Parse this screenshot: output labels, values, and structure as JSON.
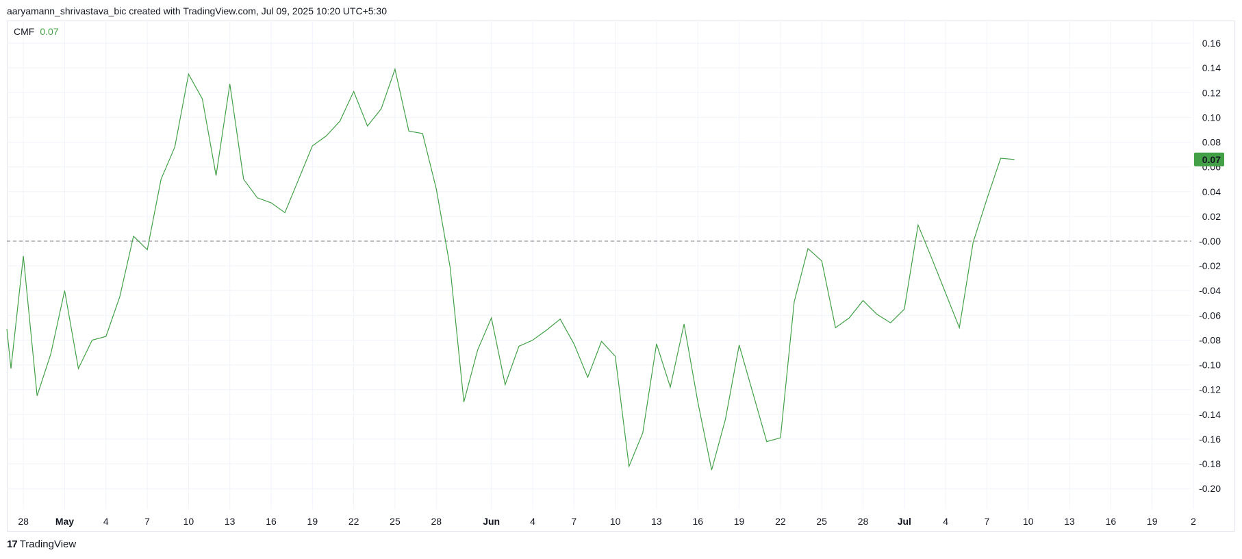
{
  "header": {
    "attribution": "aaryamann_shrivastava_bic created with TradingView.com, Jul 09, 2025 10:20 UTC+5:30"
  },
  "legend": {
    "indicator": "CMF",
    "value": "0.07"
  },
  "price_label": {
    "value": "0.07"
  },
  "footer": {
    "brand": "TradingView",
    "logo_glyph": "17"
  },
  "colors": {
    "series": "#43a047",
    "label_bg": "#43a047",
    "grid": "#f0f3fa",
    "zero_line": "#787b86"
  },
  "chart_data": {
    "type": "line",
    "title": "",
    "ylim": [
      -0.22,
      0.17
    ],
    "grid": true,
    "y_ticks": [
      "0.16",
      "0.14",
      "0.12",
      "0.10",
      "0.08",
      "0.06",
      "0.04",
      "0.02",
      "-0.00",
      "-0.02",
      "-0.04",
      "-0.06",
      "-0.08",
      "-0.10",
      "-0.12",
      "-0.14",
      "-0.16",
      "-0.18",
      "-0.20"
    ],
    "y_tick_values": [
      0.16,
      0.14,
      0.12,
      0.1,
      0.08,
      0.06,
      0.04,
      0.02,
      0,
      -0.02,
      -0.04,
      -0.06,
      -0.08,
      -0.1,
      -0.12,
      -0.14,
      -0.16,
      -0.18,
      -0.2
    ],
    "x_ticks": [
      {
        "label": "28",
        "day": -3
      },
      {
        "label": "May",
        "day": 0,
        "bold": true
      },
      {
        "label": "4",
        "day": 3
      },
      {
        "label": "7",
        "day": 6
      },
      {
        "label": "10",
        "day": 9
      },
      {
        "label": "13",
        "day": 12
      },
      {
        "label": "16",
        "day": 15
      },
      {
        "label": "19",
        "day": 18
      },
      {
        "label": "22",
        "day": 21
      },
      {
        "label": "25",
        "day": 24
      },
      {
        "label": "28",
        "day": 27
      },
      {
        "label": "Jun",
        "day": 31,
        "bold": true
      },
      {
        "label": "4",
        "day": 34
      },
      {
        "label": "7",
        "day": 37
      },
      {
        "label": "10",
        "day": 40
      },
      {
        "label": "13",
        "day": 43
      },
      {
        "label": "16",
        "day": 46
      },
      {
        "label": "19",
        "day": 49
      },
      {
        "label": "22",
        "day": 52
      },
      {
        "label": "25",
        "day": 55
      },
      {
        "label": "28",
        "day": 58
      },
      {
        "label": "Jul",
        "day": 61,
        "bold": true
      },
      {
        "label": "4",
        "day": 64
      },
      {
        "label": "7",
        "day": 67
      },
      {
        "label": "10",
        "day": 70
      },
      {
        "label": "13",
        "day": 73
      },
      {
        "label": "16",
        "day": 76
      },
      {
        "label": "19",
        "day": 79
      },
      {
        "label": "2",
        "day": 82
      }
    ],
    "x_day_range": [
      -4.2,
      81.9
    ],
    "series": [
      {
        "values": [
          {
            "day": -4.2,
            "v": -0.071
          },
          {
            "day": -3.9,
            "v": -0.103
          },
          {
            "day": -3,
            "v": -0.012
          },
          {
            "day": -2,
            "v": -0.125
          },
          {
            "day": -1,
            "v": -0.091
          },
          {
            "day": 0,
            "v": -0.04
          },
          {
            "day": 1,
            "v": -0.103
          },
          {
            "day": 2,
            "v": -0.08
          },
          {
            "day": 3,
            "v": -0.077
          },
          {
            "day": 4,
            "v": -0.045
          },
          {
            "day": 5,
            "v": 0.004
          },
          {
            "day": 6,
            "v": -0.007
          },
          {
            "day": 7,
            "v": 0.05
          },
          {
            "day": 8,
            "v": 0.076
          },
          {
            "day": 9,
            "v": 0.135
          },
          {
            "day": 10,
            "v": 0.115
          },
          {
            "day": 11,
            "v": 0.053
          },
          {
            "day": 12,
            "v": 0.127
          },
          {
            "day": 13,
            "v": 0.05
          },
          {
            "day": 14,
            "v": 0.035
          },
          {
            "day": 15,
            "v": 0.031
          },
          {
            "day": 16,
            "v": 0.023
          },
          {
            "day": 17,
            "v": 0.05
          },
          {
            "day": 18,
            "v": 0.077
          },
          {
            "day": 19,
            "v": 0.085
          },
          {
            "day": 20,
            "v": 0.097
          },
          {
            "day": 21,
            "v": 0.121
          },
          {
            "day": 22,
            "v": 0.093
          },
          {
            "day": 23,
            "v": 0.107
          },
          {
            "day": 24,
            "v": 0.139
          },
          {
            "day": 25,
            "v": 0.089
          },
          {
            "day": 26,
            "v": 0.087
          },
          {
            "day": 27,
            "v": 0.042
          },
          {
            "day": 28,
            "v": -0.021
          },
          {
            "day": 29,
            "v": -0.13
          },
          {
            "day": 30,
            "v": -0.088
          },
          {
            "day": 31,
            "v": -0.062
          },
          {
            "day": 32,
            "v": -0.116
          },
          {
            "day": 33,
            "v": -0.085
          },
          {
            "day": 34,
            "v": -0.08
          },
          {
            "day": 35,
            "v": -0.072
          },
          {
            "day": 36,
            "v": -0.063
          },
          {
            "day": 37,
            "v": -0.083
          },
          {
            "day": 38,
            "v": -0.11
          },
          {
            "day": 39,
            "v": -0.081
          },
          {
            "day": 40,
            "v": -0.093
          },
          {
            "day": 41,
            "v": -0.182
          },
          {
            "day": 42,
            "v": -0.155
          },
          {
            "day": 43,
            "v": -0.083
          },
          {
            "day": 44,
            "v": -0.118
          },
          {
            "day": 45,
            "v": -0.067
          },
          {
            "day": 46,
            "v": -0.13
          },
          {
            "day": 47,
            "v": -0.185
          },
          {
            "day": 48,
            "v": -0.144
          },
          {
            "day": 49,
            "v": -0.084
          },
          {
            "day": 50,
            "v": -0.123
          },
          {
            "day": 51,
            "v": -0.162
          },
          {
            "day": 52,
            "v": -0.159
          },
          {
            "day": 53,
            "v": -0.049
          },
          {
            "day": 54,
            "v": -0.006
          },
          {
            "day": 55,
            "v": -0.016
          },
          {
            "day": 56,
            "v": -0.07
          },
          {
            "day": 57,
            "v": -0.062
          },
          {
            "day": 58,
            "v": -0.048
          },
          {
            "day": 59,
            "v": -0.059
          },
          {
            "day": 60,
            "v": -0.066
          },
          {
            "day": 61,
            "v": -0.055
          },
          {
            "day": 62,
            "v": 0.013
          },
          {
            "day": 63,
            "v": -0.014
          },
          {
            "day": 64,
            "v": -0.042
          },
          {
            "day": 65,
            "v": -0.07
          },
          {
            "day": 66,
            "v": -0.001
          },
          {
            "day": 67,
            "v": 0.034
          },
          {
            "day": 68,
            "v": 0.067
          },
          {
            "day": 69,
            "v": 0.066
          }
        ]
      }
    ]
  }
}
